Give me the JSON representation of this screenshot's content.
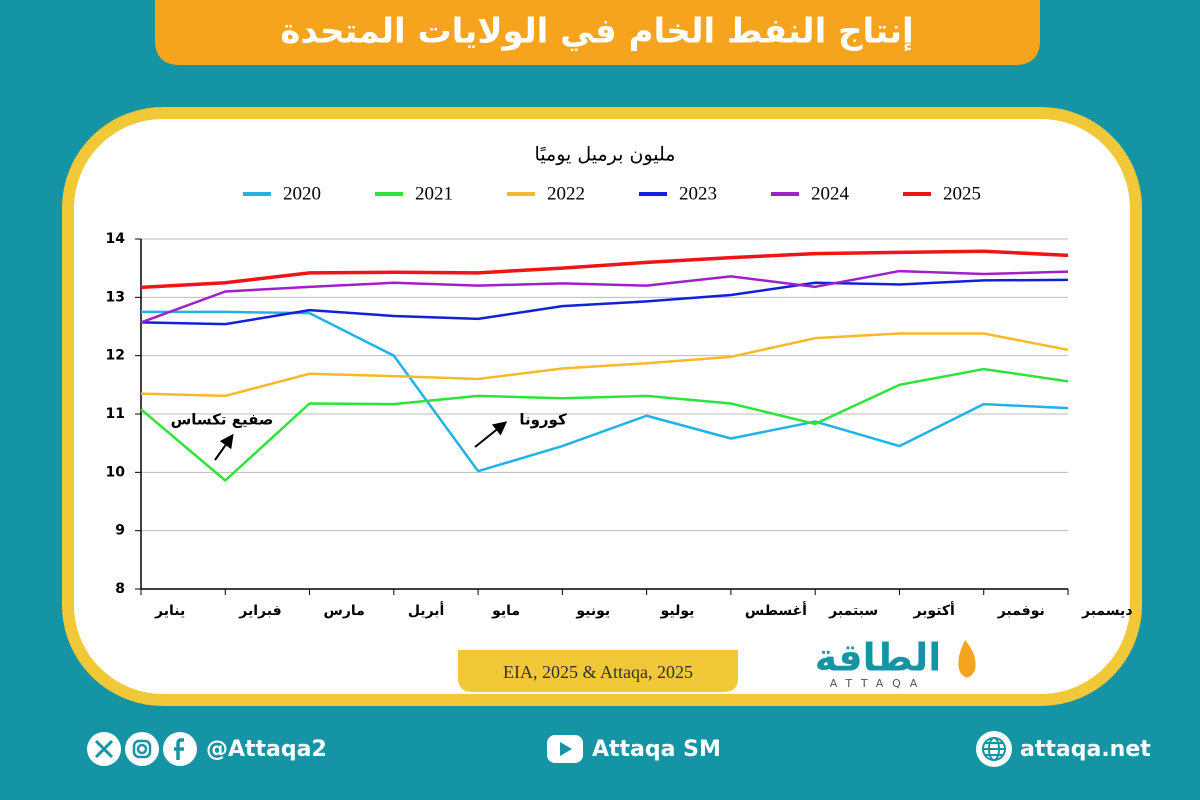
{
  "header": {
    "title": "إنتاج النفط الخام في الولايات المتحدة"
  },
  "chart_data": {
    "type": "line",
    "y_label": "مليون برميل يوميًا",
    "categories": [
      "يناير",
      "فبراير",
      "مارس",
      "أبريل",
      "مايو",
      "يونيو",
      "يوليو",
      "أغسطس",
      "سبتمبر",
      "أكتوبر",
      "نوفمبر",
      "ديسمبر"
    ],
    "series": [
      {
        "name": "2020",
        "color": "#22b2e6",
        "values": [
          12.75,
          12.75,
          12.73,
          12.0,
          10.02,
          10.45,
          10.97,
          10.58,
          10.87,
          10.45,
          11.17,
          11.1
        ]
      },
      {
        "name": "2021",
        "color": "#2ee33a",
        "values": [
          11.08,
          9.86,
          11.18,
          11.17,
          11.31,
          11.27,
          11.31,
          11.18,
          10.83,
          11.5,
          11.77,
          11.56
        ]
      },
      {
        "name": "2022",
        "color": "#f5b92a",
        "values": [
          11.35,
          11.31,
          11.69,
          11.65,
          11.6,
          11.78,
          11.87,
          11.98,
          12.3,
          12.38,
          12.38,
          12.1
        ]
      },
      {
        "name": "2023",
        "color": "#1220d8",
        "values": [
          12.57,
          12.54,
          12.78,
          12.68,
          12.63,
          12.85,
          12.93,
          13.04,
          13.25,
          13.22,
          13.29,
          13.3
        ]
      },
      {
        "name": "2024",
        "color": "#a020c8",
        "values": [
          12.57,
          13.1,
          13.18,
          13.25,
          13.2,
          13.24,
          13.2,
          13.36,
          13.18,
          13.45,
          13.4,
          13.44
        ]
      },
      {
        "name": "2025",
        "color": "#ee1515",
        "values": [
          13.17,
          13.25,
          13.42,
          13.43,
          13.42,
          13.5,
          13.6,
          13.68,
          13.75,
          13.77,
          13.79,
          13.72
        ]
      }
    ],
    "ylim": [
      8,
      14
    ],
    "yticks": [
      8,
      9,
      10,
      11,
      12,
      13,
      14
    ],
    "grid": true,
    "annotations": [
      "صفيع تكساس",
      "كورونا"
    ]
  },
  "source": "EIA, 2025 & Attaqa, 2025",
  "logo": {
    "arabic": "الطاقة",
    "latin": "ATTAQA"
  },
  "footer": {
    "social": "@Attaqa2",
    "youtube": "Attaqa SM",
    "website": "attaqa.net"
  }
}
